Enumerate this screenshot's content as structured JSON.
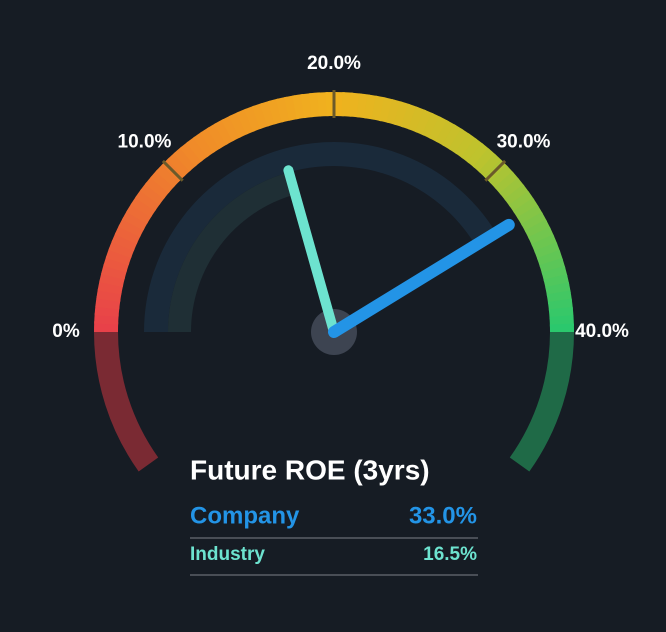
{
  "chart_data": {
    "type": "gauge",
    "title": "Future ROE (3yrs)",
    "xlim": [
      0,
      40
    ],
    "xticks": [
      {
        "value": 0,
        "label": "0%"
      },
      {
        "value": 10,
        "label": "10.0%"
      },
      {
        "value": 20,
        "label": "20.0%"
      },
      {
        "value": 30,
        "label": "30.0%"
      },
      {
        "value": 40,
        "label": "40.0%"
      }
    ],
    "series": [
      {
        "name": "Company",
        "color": "#2394e6",
        "values": [
          33.0
        ],
        "value_labels": [
          "33.0%"
        ]
      },
      {
        "name": "Industry",
        "color": "#6de3cf",
        "values": [
          16.5
        ],
        "value_labels": [
          "16.5%"
        ]
      }
    ]
  }
}
